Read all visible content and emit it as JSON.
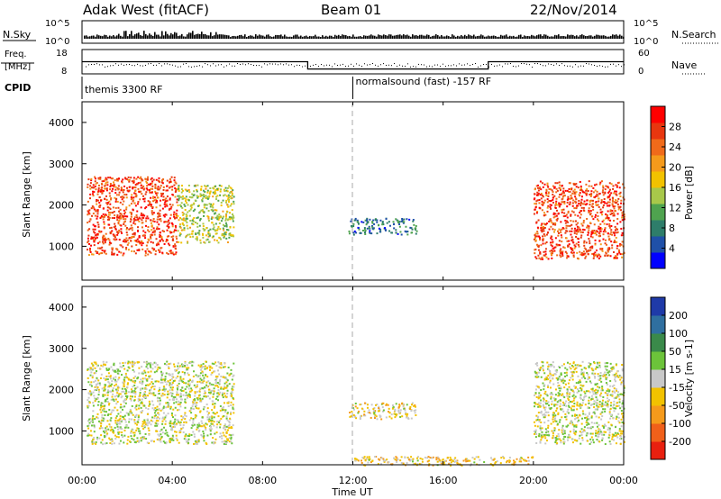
{
  "header": {
    "radar": "Adak West (fitACF)",
    "beam": "Beam 01",
    "date": "22/Nov/2014"
  },
  "strip_panels": {
    "nsky": {
      "label": "N.Sky",
      "right_label": "N.Search",
      "left_ticks": [
        "10^5",
        "10^0"
      ],
      "right_ticks": [
        "10^5",
        "10^0"
      ]
    },
    "freq": {
      "label_line1": "Freq.",
      "label_line2": "[MHz]",
      "right_label": "Nave",
      "left_ticks": [
        "18",
        "8"
      ],
      "right_ticks": [
        "60",
        "0"
      ]
    },
    "cpid": {
      "label": "CPID",
      "segments": [
        {
          "start_hour": 0.0,
          "text": "themis 3300 RF"
        },
        {
          "start_hour": 12.0,
          "text": "normalsound (fast) -157 RF"
        }
      ]
    }
  },
  "x_axis": {
    "label": "Time UT",
    "ticks": [
      "00:00",
      "04:00",
      "08:00",
      "12:00",
      "16:00",
      "20:00",
      "00:00"
    ]
  },
  "power_panel": {
    "ylabel": "Slant Range [km]",
    "yticks": [
      "4000",
      "3000",
      "2000",
      "1000"
    ],
    "colorbar_label": "Power [dB]",
    "colorbar_ticks": [
      "28",
      "24",
      "20",
      "16",
      "12",
      "8",
      "4"
    ],
    "colors": [
      "#0000ff",
      "#1f50a8",
      "#2e7d6a",
      "#4fa34f",
      "#a8c84a",
      "#f2c200",
      "#f59a1b",
      "#f06a1a",
      "#e8360f",
      "#ff0000"
    ]
  },
  "velocity_panel": {
    "ylabel": "Slant Range [km]",
    "yticks": [
      "4000",
      "3000",
      "2000",
      "1000"
    ],
    "colorbar_label": "Velocity [m s-1]",
    "colorbar_ticks": [
      "200",
      "100",
      "50",
      "15",
      "-15",
      "-50",
      "-100",
      "-200"
    ],
    "colors": [
      "#1f3aa8",
      "#2f6fa0",
      "#3a8a4a",
      "#6cc33a",
      "#c8c8c8",
      "#f2c200",
      "#f59a1b",
      "#f0601a",
      "#e8200f"
    ]
  },
  "chart_data": {
    "type": "heatmap",
    "x_range_hours": [
      0,
      24
    ],
    "y_range_km": [
      180,
      4500
    ],
    "freq_mhz_steps": [
      {
        "from_hour": 0.0,
        "to_hour": 10.0,
        "value": 13
      },
      {
        "from_hour": 10.0,
        "to_hour": 18.0,
        "value": 10
      },
      {
        "from_hour": 18.0,
        "to_hour": 24.0,
        "value": 13
      }
    ],
    "power_regions": [
      {
        "from_hour": 0.2,
        "to_hour": 4.2,
        "range_min_km": 800,
        "range_max_km": 2700,
        "dominant_db": 26
      },
      {
        "from_hour": 4.2,
        "to_hour": 6.7,
        "range_min_km": 1100,
        "range_max_km": 2500,
        "dominant_db": 14
      },
      {
        "from_hour": 11.8,
        "to_hour": 14.8,
        "range_min_km": 1300,
        "range_max_km": 1700,
        "dominant_db": 6
      },
      {
        "from_hour": 20.0,
        "to_hour": 24.0,
        "range_min_km": 700,
        "range_max_km": 2600,
        "dominant_db": 26
      }
    ],
    "velocity_regions": [
      {
        "from_hour": 0.2,
        "to_hour": 6.7,
        "range_min_km": 700,
        "range_max_km": 2700,
        "dominant_ms": 0
      },
      {
        "from_hour": 11.8,
        "to_hour": 14.8,
        "range_min_km": 1300,
        "range_max_km": 1700,
        "dominant_ms": -30
      },
      {
        "from_hour": 12.0,
        "to_hour": 20.0,
        "range_min_km": 180,
        "range_max_km": 400,
        "dominant_ms": -40
      },
      {
        "from_hour": 20.0,
        "to_hour": 24.0,
        "range_min_km": 700,
        "range_max_km": 2700,
        "dominant_ms": 0
      }
    ]
  }
}
